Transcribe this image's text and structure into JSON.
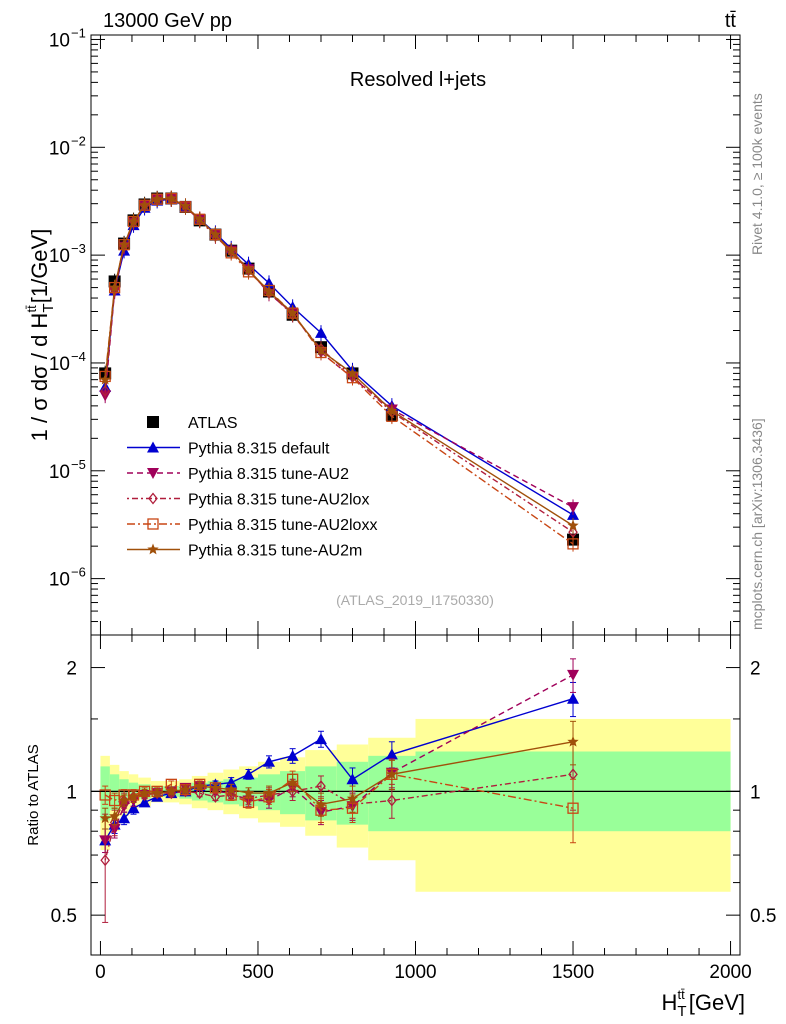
{
  "header": {
    "energy_label": "13000 GeV pp",
    "process_label": "tt̄"
  },
  "side": {
    "rivet_label": "Rivet 4.1.0, ≥ 100k events",
    "mcplots_label": "mcplots.cern.ch [arXiv:1306.3436]"
  },
  "chart_data": [
    {
      "type": "line",
      "panel": "main",
      "title": "Resolved l+jets",
      "analysis_label": "(ATLAS_2019_I1750330)",
      "xlabel": "H_T^{tt̄} [GeV]",
      "ylabel": "1 / σ dσ / d H_T^{tt̄} [1/GeV]",
      "yscale": "log",
      "xlim": [
        -30,
        2030
      ],
      "ylim": [
        3e-07,
        0.11
      ],
      "yticks": [
        {
          "value": 1e-06,
          "label": "10",
          "exp": "−6"
        },
        {
          "value": 1e-05,
          "label": "10",
          "exp": "−5"
        },
        {
          "value": 0.0001,
          "label": "10",
          "exp": "−4"
        },
        {
          "value": 0.001,
          "label": "10",
          "exp": "−3"
        },
        {
          "value": 0.01,
          "label": "10",
          "exp": "−2"
        },
        {
          "value": 0.1,
          "label": "10",
          "exp": "−1"
        }
      ],
      "x": [
        15,
        45,
        75,
        105,
        140,
        180,
        225,
        270,
        315,
        365,
        415,
        470,
        535,
        610,
        700,
        800,
        925,
        1500
      ],
      "series": [
        {
          "name": "ATLAS",
          "style": "data",
          "color": "#000000",
          "values": [
            8e-05,
            0.00057,
            0.00128,
            0.0021,
            0.00295,
            0.00335,
            0.00335,
            0.0028,
            0.0021,
            0.00155,
            0.0011,
            0.00075,
            0.00046,
            0.00028,
            0.00014,
            8e-05,
            3.3e-05,
            2.3e-06
          ]
        },
        {
          "name": "Pythia 8.315 default",
          "style": "solid",
          "marker": "triangle-up",
          "color": "#0000d0",
          "values": [
            6e-05,
            0.00047,
            0.0011,
            0.0019,
            0.00275,
            0.0032,
            0.0033,
            0.0028,
            0.00215,
            0.0016,
            0.00115,
            0.00082,
            0.00055,
            0.00033,
            0.00019,
            8.5e-05,
            4e-05,
            3.9e-06
          ]
        },
        {
          "name": "Pythia 8.315 tune-AU2",
          "style": "dashed",
          "marker": "triangle-down",
          "color": "#a0005a",
          "values": [
            5e-05,
            0.00046,
            0.0012,
            0.002,
            0.0029,
            0.0033,
            0.00335,
            0.00285,
            0.00215,
            0.00155,
            0.0011,
            0.00074,
            0.00044,
            0.00029,
            0.000125,
            7.3e-05,
            3.7e-05,
            4.6e-06
          ]
        },
        {
          "name": "Pythia 8.315 tune-AU2lox",
          "style": "dotdash",
          "marker": "diamond-open",
          "color": "#b01e3c",
          "values": [
            5.5e-05,
            0.00048,
            0.00122,
            0.00205,
            0.0029,
            0.0033,
            0.0033,
            0.0028,
            0.0021,
            0.0015,
            0.00108,
            0.00072,
            0.00045,
            0.00028,
            0.000135,
            7.5e-05,
            3.5e-05,
            2.7e-06
          ]
        },
        {
          "name": "Pythia 8.315 tune-AU2loxx",
          "style": "dashdot",
          "marker": "square-open",
          "color": "#c84614",
          "values": [
            7.5e-05,
            0.0005,
            0.00125,
            0.00205,
            0.0029,
            0.0033,
            0.00335,
            0.0028,
            0.00215,
            0.00155,
            0.00105,
            0.0007,
            0.00047,
            0.00029,
            0.000125,
            7.3e-05,
            3.2e-05,
            2.1e-06
          ]
        },
        {
          "name": "Pythia 8.315 tune-AU2m",
          "style": "solid",
          "marker": "star",
          "color": "#a0500a",
          "values": [
            7e-05,
            0.0005,
            0.00125,
            0.00205,
            0.0029,
            0.0033,
            0.00335,
            0.00285,
            0.00215,
            0.00155,
            0.0011,
            0.00073,
            0.00046,
            0.00029,
            0.00013,
            8e-05,
            3.6e-05,
            3.1e-06
          ]
        }
      ]
    },
    {
      "type": "line",
      "panel": "ratio",
      "ylabel": "Ratio to ATLAS",
      "xlabel": "H_T^{tt̄} [GeV]",
      "yscale": "log",
      "xlim": [
        -30,
        2030
      ],
      "ylim": [
        0.4,
        2.4
      ],
      "yticks": [
        {
          "value": 0.5,
          "label": "0.5"
        },
        {
          "value": 1,
          "label": "1"
        },
        {
          "value": 2,
          "label": "2"
        }
      ],
      "xticks": [
        {
          "value": 0,
          "label": "0"
        },
        {
          "value": 500,
          "label": "500"
        },
        {
          "value": 1000,
          "label": "1000"
        },
        {
          "value": 1500,
          "label": "1500"
        },
        {
          "value": 2000,
          "label": "2000"
        }
      ],
      "bin_edges": [
        0,
        30,
        60,
        90,
        120,
        160,
        200,
        250,
        290,
        340,
        390,
        440,
        500,
        570,
        650,
        750,
        850,
        1000,
        2000
      ],
      "band_inner": [
        [
          0.85,
          1.15
        ],
        [
          0.9,
          1.1
        ],
        [
          0.93,
          1.07
        ],
        [
          0.95,
          1.05
        ],
        [
          0.96,
          1.04
        ],
        [
          0.97,
          1.03
        ],
        [
          0.97,
          1.03
        ],
        [
          0.96,
          1.04
        ],
        [
          0.95,
          1.05
        ],
        [
          0.94,
          1.06
        ],
        [
          0.93,
          1.07
        ],
        [
          0.92,
          1.08
        ],
        [
          0.9,
          1.1
        ],
        [
          0.88,
          1.12
        ],
        [
          0.85,
          1.15
        ],
        [
          0.83,
          1.18
        ],
        [
          0.8,
          1.22
        ],
        [
          0.8,
          1.25
        ]
      ],
      "band_outer": [
        [
          0.72,
          1.22
        ],
        [
          0.8,
          1.16
        ],
        [
          0.87,
          1.12
        ],
        [
          0.9,
          1.1
        ],
        [
          0.92,
          1.08
        ],
        [
          0.94,
          1.06
        ],
        [
          0.94,
          1.06
        ],
        [
          0.93,
          1.07
        ],
        [
          0.91,
          1.09
        ],
        [
          0.9,
          1.11
        ],
        [
          0.88,
          1.13
        ],
        [
          0.86,
          1.15
        ],
        [
          0.84,
          1.18
        ],
        [
          0.82,
          1.21
        ],
        [
          0.78,
          1.26
        ],
        [
          0.73,
          1.3
        ],
        [
          0.68,
          1.35
        ],
        [
          0.57,
          1.5
        ]
      ],
      "x": [
        15,
        45,
        75,
        105,
        140,
        180,
        225,
        270,
        315,
        365,
        415,
        470,
        535,
        610,
        700,
        800,
        925,
        1500
      ],
      "series": [
        {
          "name": "Pythia 8.315 default",
          "style": "solid",
          "marker": "triangle-up",
          "color": "#0000d0",
          "values": [
            0.76,
            0.83,
            0.86,
            0.91,
            0.94,
            0.97,
            0.99,
            1.0,
            1.03,
            1.04,
            1.05,
            1.1,
            1.18,
            1.22,
            1.34,
            1.07,
            1.23,
            1.68
          ],
          "err": [
            0.05,
            0.04,
            0.03,
            0.03,
            0.02,
            0.02,
            0.02,
            0.02,
            0.02,
            0.02,
            0.03,
            0.03,
            0.04,
            0.05,
            0.06,
            0.07,
            0.09,
            0.16
          ]
        },
        {
          "name": "Pythia 8.315 tune-AU2",
          "style": "dashed",
          "marker": "triangle-down",
          "color": "#a0005a",
          "values": [
            0.76,
            0.81,
            0.92,
            0.95,
            0.98,
            0.99,
            1.0,
            1.02,
            1.03,
            1.0,
            0.99,
            0.95,
            0.95,
            1.02,
            0.89,
            0.92,
            1.11,
            1.92
          ],
          "err": [
            0.05,
            0.04,
            0.03,
            0.03,
            0.02,
            0.02,
            0.02,
            0.02,
            0.02,
            0.02,
            0.03,
            0.03,
            0.04,
            0.05,
            0.06,
            0.07,
            0.09,
            0.18
          ]
        },
        {
          "name": "Pythia 8.315 tune-AU2lox",
          "style": "dotdash",
          "marker": "diamond-open",
          "color": "#b01e3c",
          "values": [
            0.68,
            0.84,
            0.95,
            0.97,
            0.98,
            0.99,
            0.99,
            1.0,
            0.99,
            0.97,
            0.98,
            0.96,
            0.98,
            1.0,
            1.03,
            0.93,
            0.95,
            1.1
          ],
          "err": [
            0.2,
            0.06,
            0.04,
            0.03,
            0.02,
            0.02,
            0.02,
            0.02,
            0.02,
            0.02,
            0.03,
            0.03,
            0.04,
            0.05,
            0.06,
            0.07,
            0.09,
            0.2
          ]
        },
        {
          "name": "Pythia 8.315 tune-AU2loxx",
          "style": "dashdot",
          "marker": "square-open",
          "color": "#c84614",
          "values": [
            0.98,
            0.95,
            0.98,
            0.98,
            1.0,
            1.0,
            1.04,
            1.01,
            1.04,
            1.02,
            0.98,
            0.94,
            0.97,
            1.07,
            0.9,
            0.91,
            1.1,
            0.91
          ],
          "err": [
            0.05,
            0.04,
            0.03,
            0.03,
            0.02,
            0.02,
            0.02,
            0.02,
            0.02,
            0.02,
            0.03,
            0.03,
            0.04,
            0.05,
            0.06,
            0.07,
            0.09,
            0.16
          ]
        },
        {
          "name": "Pythia 8.315 tune-AU2m",
          "style": "solid",
          "marker": "star",
          "color": "#a0500a",
          "values": [
            0.86,
            0.87,
            0.95,
            0.97,
            0.99,
            0.99,
            1.0,
            1.01,
            1.03,
            1.02,
            1.01,
            0.99,
            0.99,
            1.05,
            0.93,
            0.96,
            1.1,
            1.32
          ],
          "err": [
            0.05,
            0.04,
            0.03,
            0.03,
            0.02,
            0.02,
            0.02,
            0.02,
            0.02,
            0.02,
            0.03,
            0.03,
            0.04,
            0.05,
            0.06,
            0.07,
            0.09,
            0.16
          ]
        }
      ]
    }
  ]
}
